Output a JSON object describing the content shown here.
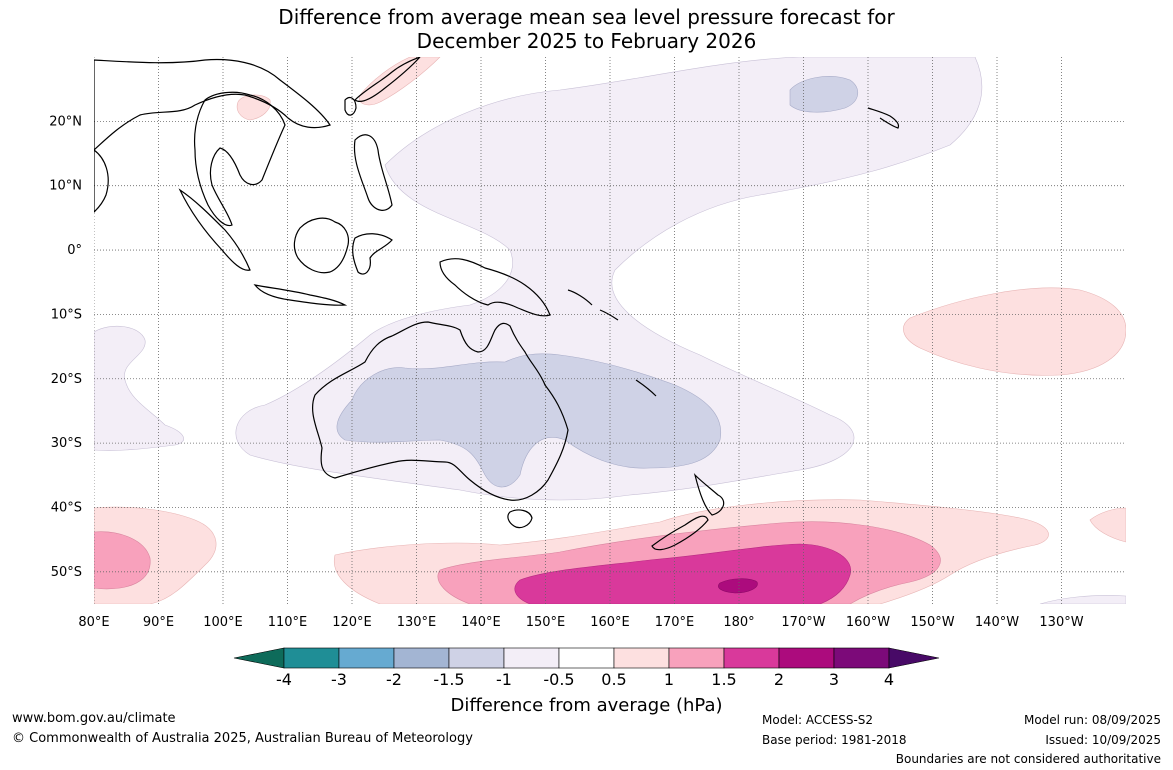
{
  "title": {
    "line1": "Difference from average mean sea level pressure forecast for",
    "line2": "December 2025 to February 2026"
  },
  "map": {
    "lon_labels": [
      "80°E",
      "90°E",
      "100°E",
      "110°E",
      "120°E",
      "130°E",
      "140°E",
      "150°E",
      "160°E",
      "170°E",
      "180°",
      "170°W",
      "160°W",
      "150°W",
      "140°W",
      "130°W"
    ],
    "lat_labels": [
      "20°N",
      "10°N",
      "0°",
      "10°S",
      "20°S",
      "30°S",
      "40°S",
      "50°S"
    ],
    "extent": {
      "lon_min": 80,
      "lon_max": 240,
      "lat_min": -55,
      "lat_max": 30
    }
  },
  "legend": {
    "ticks": [
      "-4",
      "-3",
      "-2",
      "-1.5",
      "-1",
      "-0.5",
      "0.5",
      "1",
      "1.5",
      "2",
      "3",
      "4"
    ],
    "colors": [
      "#0e6b5a",
      "#1f8e96",
      "#66aad1",
      "#a3b5d3",
      "#cfd2e6",
      "#f3eef7",
      "#ffffff",
      "#fde0e0",
      "#f8a1bc",
      "#d9399b",
      "#ac0b7d",
      "#7c0a79",
      "#480a67"
    ],
    "title": "Difference from average (hPa)"
  },
  "footer": {
    "website": "www.bom.gov.au/climate",
    "copyright": "© Commonwealth of Australia 2025, Australian Bureau of Meteorology",
    "model": "Model: ACCESS-S2",
    "base_period": "Base period: 1981-2018",
    "model_run": "Model run: 08/09/2025",
    "issued": "Issued: 10/09/2025",
    "disclaimer": "Boundaries are not considered authoritative"
  }
}
